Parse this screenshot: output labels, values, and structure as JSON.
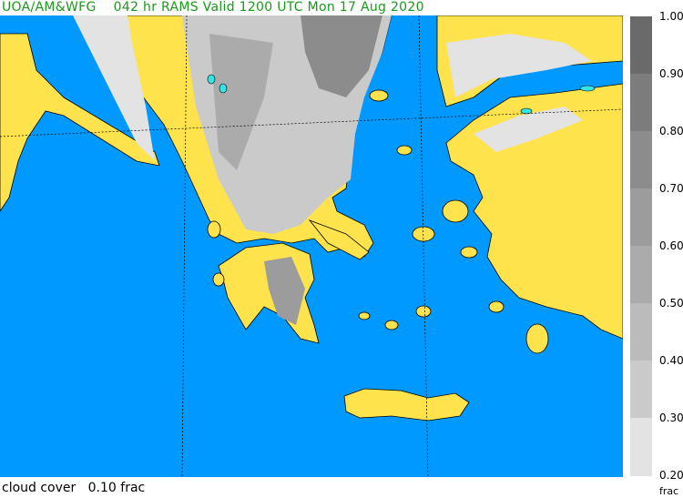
{
  "header": {
    "left": "UOA/AM&WFG",
    "title": "042 hr RAMS Valid 1200 UTC Mon 17 Aug 2020"
  },
  "footer": {
    "field": "cloud cover",
    "value": "0.10 frac"
  },
  "colors": {
    "sea": "#0099ff",
    "land": "#ffe34d",
    "title": "#1a9a1a",
    "lake": "#33e6e6"
  },
  "colorbar": {
    "unit": "frac",
    "labels": [
      "1.00",
      "0.90",
      "0.80",
      "0.70",
      "0.60",
      "0.50",
      "0.40",
      "0.30",
      "0.20"
    ],
    "bins": [
      "#6a6a6a",
      "#7c7c7c",
      "#8c8c8c",
      "#9c9c9c",
      "#ababab",
      "#bbbbbb",
      "#cacaca",
      "#e3e3e3"
    ]
  }
}
